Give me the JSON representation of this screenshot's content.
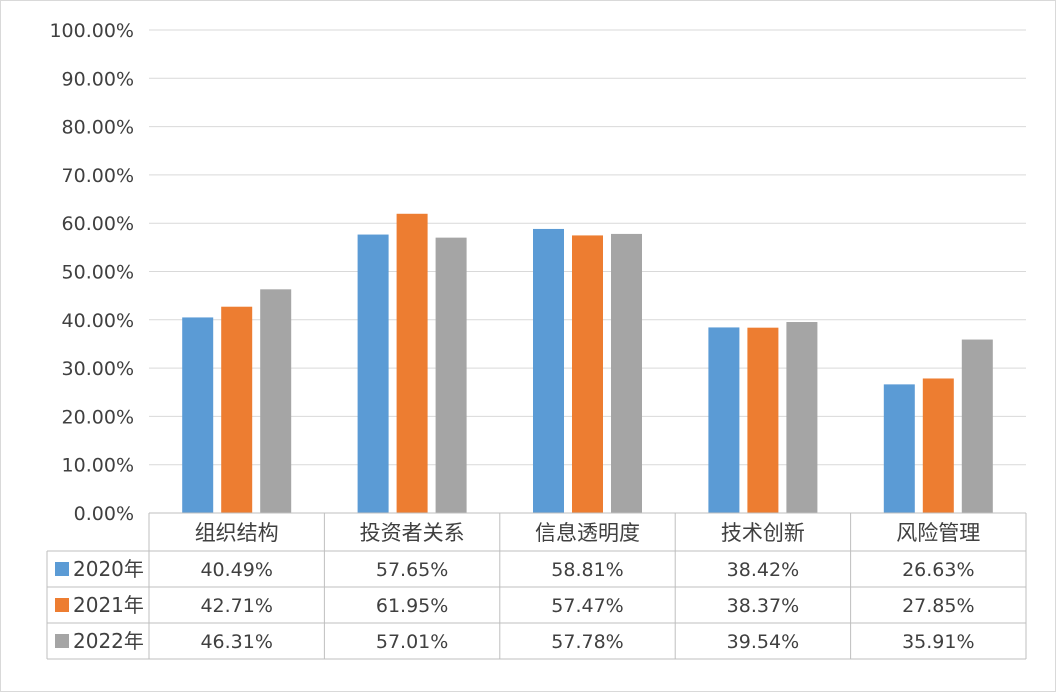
{
  "chart_data": {
    "type": "bar",
    "categories": [
      "组织结构",
      "投资者关系",
      "信息透明度",
      "技术创新",
      "风险管理"
    ],
    "series": [
      {
        "name": "2020年",
        "color": "#5B9BD5",
        "values": [
          40.49,
          57.65,
          58.81,
          38.42,
          26.63
        ],
        "labels": [
          "40.49%",
          "57.65%",
          "58.81%",
          "38.42%",
          "26.63%"
        ]
      },
      {
        "name": "2021年",
        "color": "#ED7D31",
        "values": [
          42.71,
          61.95,
          57.47,
          38.37,
          27.85
        ],
        "labels": [
          "42.71%",
          "61.95%",
          "57.47%",
          "38.37%",
          "27.85%"
        ]
      },
      {
        "name": "2022年",
        "color": "#A5A5A5",
        "values": [
          46.31,
          57.01,
          57.78,
          39.54,
          35.91
        ],
        "labels": [
          "46.31%",
          "57.01%",
          "57.78%",
          "39.54%",
          "35.91%"
        ]
      }
    ],
    "ylim": [
      0,
      100
    ],
    "yticks": [
      "0.00%",
      "10.00%",
      "20.00%",
      "30.00%",
      "40.00%",
      "50.00%",
      "60.00%",
      "70.00%",
      "80.00%",
      "90.00%",
      "100.00%"
    ],
    "grid": true,
    "legend": "data-table",
    "title": "",
    "xlabel": "",
    "ylabel": ""
  }
}
